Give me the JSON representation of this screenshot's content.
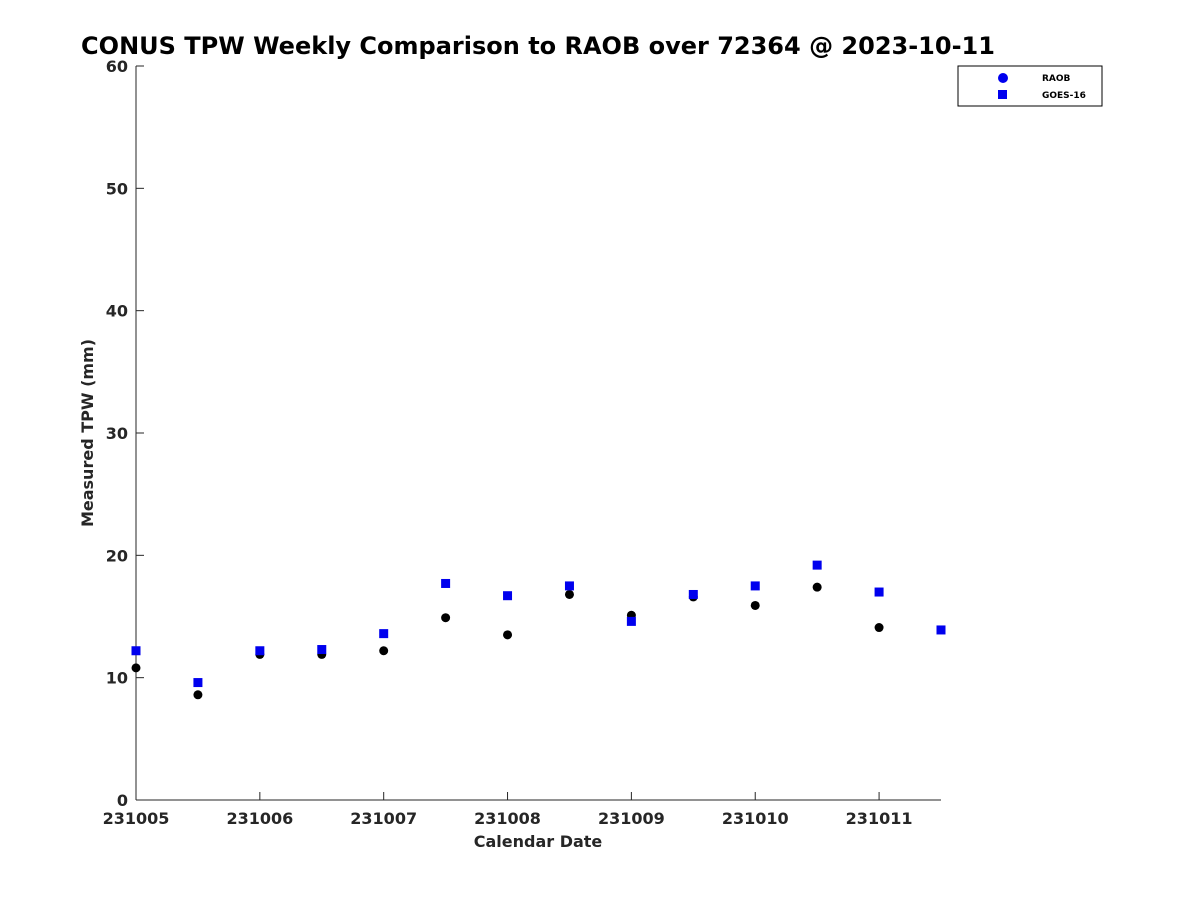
{
  "chart_data": {
    "type": "scatter",
    "title": "CONUS TPW Weekly Comparison to RAOB over 72364 @ 2023-10-11",
    "xlabel": "Calendar Date",
    "ylabel": "Measured TPW (mm)",
    "x_ticks": [
      "231005",
      "231006",
      "231007",
      "231008",
      "231009",
      "231010",
      "231011"
    ],
    "xlim": [
      0,
      6.5
    ],
    "ylim": [
      0,
      60
    ],
    "y_ticks": [
      0,
      10,
      20,
      30,
      40,
      50,
      60
    ],
    "grid": false,
    "legend_position": "top-right",
    "series": [
      {
        "name": "RAOB",
        "marker": "circle",
        "color": "#000000",
        "legend_color": "#0000ee",
        "x": [
          0,
          0.5,
          1,
          1.5,
          2,
          2.5,
          3,
          3.5,
          4,
          4.5,
          5,
          5.5,
          6
        ],
        "values": [
          10.8,
          8.6,
          11.9,
          11.9,
          12.2,
          14.9,
          13.5,
          16.8,
          15.1,
          16.6,
          15.9,
          17.4,
          14.1
        ]
      },
      {
        "name": "GOES-16",
        "marker": "square",
        "color": "#0000ee",
        "x": [
          0,
          0.5,
          1,
          1.5,
          2,
          2.5,
          3,
          3.5,
          4,
          4.5,
          5,
          5.5,
          6,
          6.5
        ],
        "values": [
          12.2,
          9.6,
          12.2,
          12.3,
          13.6,
          17.7,
          16.7,
          17.5,
          14.6,
          16.8,
          17.5,
          19.2,
          17.0,
          13.9
        ]
      }
    ]
  }
}
